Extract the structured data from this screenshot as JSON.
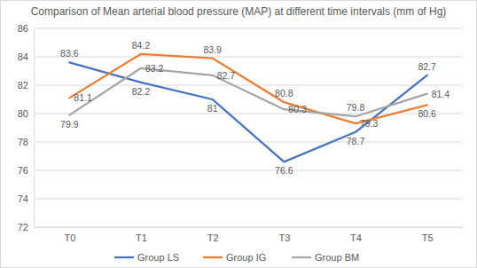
{
  "chart_data": {
    "type": "line",
    "title": "Comparison of Mean arterial blood pressure (MAP) at different time intervals (mm of Hg)",
    "categories": [
      "T0",
      "T1",
      "T2",
      "T3",
      "T4",
      "T5"
    ],
    "series": [
      {
        "name": "Group LS",
        "color": "#4472c4",
        "values": [
          83.6,
          82.2,
          81,
          76.6,
          78.7,
          82.7
        ]
      },
      {
        "name": "Group IG",
        "color": "#ed7d31",
        "values": [
          81.1,
          84.2,
          83.9,
          80.8,
          79.3,
          80.6
        ]
      },
      {
        "name": "Group BM",
        "color": "#a5a5a5",
        "values": [
          79.9,
          83.2,
          82.7,
          80.3,
          79.8,
          81.4
        ]
      }
    ],
    "ylim": [
      72,
      86
    ],
    "yticks": [
      72,
      74,
      76,
      78,
      80,
      82,
      84,
      86
    ],
    "grid": true,
    "data_labels": true,
    "legend": "bottom"
  }
}
